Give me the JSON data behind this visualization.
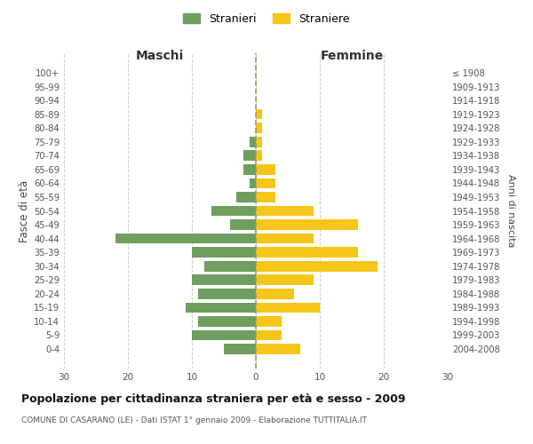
{
  "age_groups": [
    "100+",
    "95-99",
    "90-94",
    "85-89",
    "80-84",
    "75-79",
    "70-74",
    "65-69",
    "60-64",
    "55-59",
    "50-54",
    "45-49",
    "40-44",
    "35-39",
    "30-34",
    "25-29",
    "20-24",
    "15-19",
    "10-14",
    "5-9",
    "0-4"
  ],
  "birth_years": [
    "≤ 1908",
    "1909-1913",
    "1914-1918",
    "1919-1923",
    "1924-1928",
    "1929-1933",
    "1934-1938",
    "1939-1943",
    "1944-1948",
    "1949-1953",
    "1954-1958",
    "1959-1963",
    "1964-1968",
    "1969-1973",
    "1974-1978",
    "1979-1983",
    "1984-1988",
    "1989-1993",
    "1994-1998",
    "1999-2003",
    "2004-2008"
  ],
  "maschi": [
    0,
    0,
    0,
    0,
    0,
    1,
    2,
    2,
    1,
    3,
    7,
    4,
    22,
    10,
    8,
    10,
    9,
    11,
    9,
    10,
    5
  ],
  "femmine": [
    0,
    0,
    0,
    1,
    1,
    1,
    1,
    3,
    3,
    3,
    9,
    16,
    9,
    16,
    19,
    9,
    6,
    10,
    4,
    4,
    7
  ],
  "maschi_color": "#6e9e60",
  "femmine_color": "#f5c518",
  "title": "Popolazione per cittadinanza straniera per età e sesso - 2009",
  "subtitle": "COMUNE DI CASARANO (LE) - Dati ISTAT 1° gennaio 2009 - Elaborazione TUTTITALIA.IT",
  "left_label": "Maschi",
  "right_label": "Femmine",
  "left_axis_label": "Fasce di età",
  "right_axis_label": "Anni di nascita",
  "legend_stranieri": "Stranieri",
  "legend_straniere": "Straniere",
  "xlim": 30,
  "bg_color": "#ffffff",
  "grid_color": "#cccccc"
}
